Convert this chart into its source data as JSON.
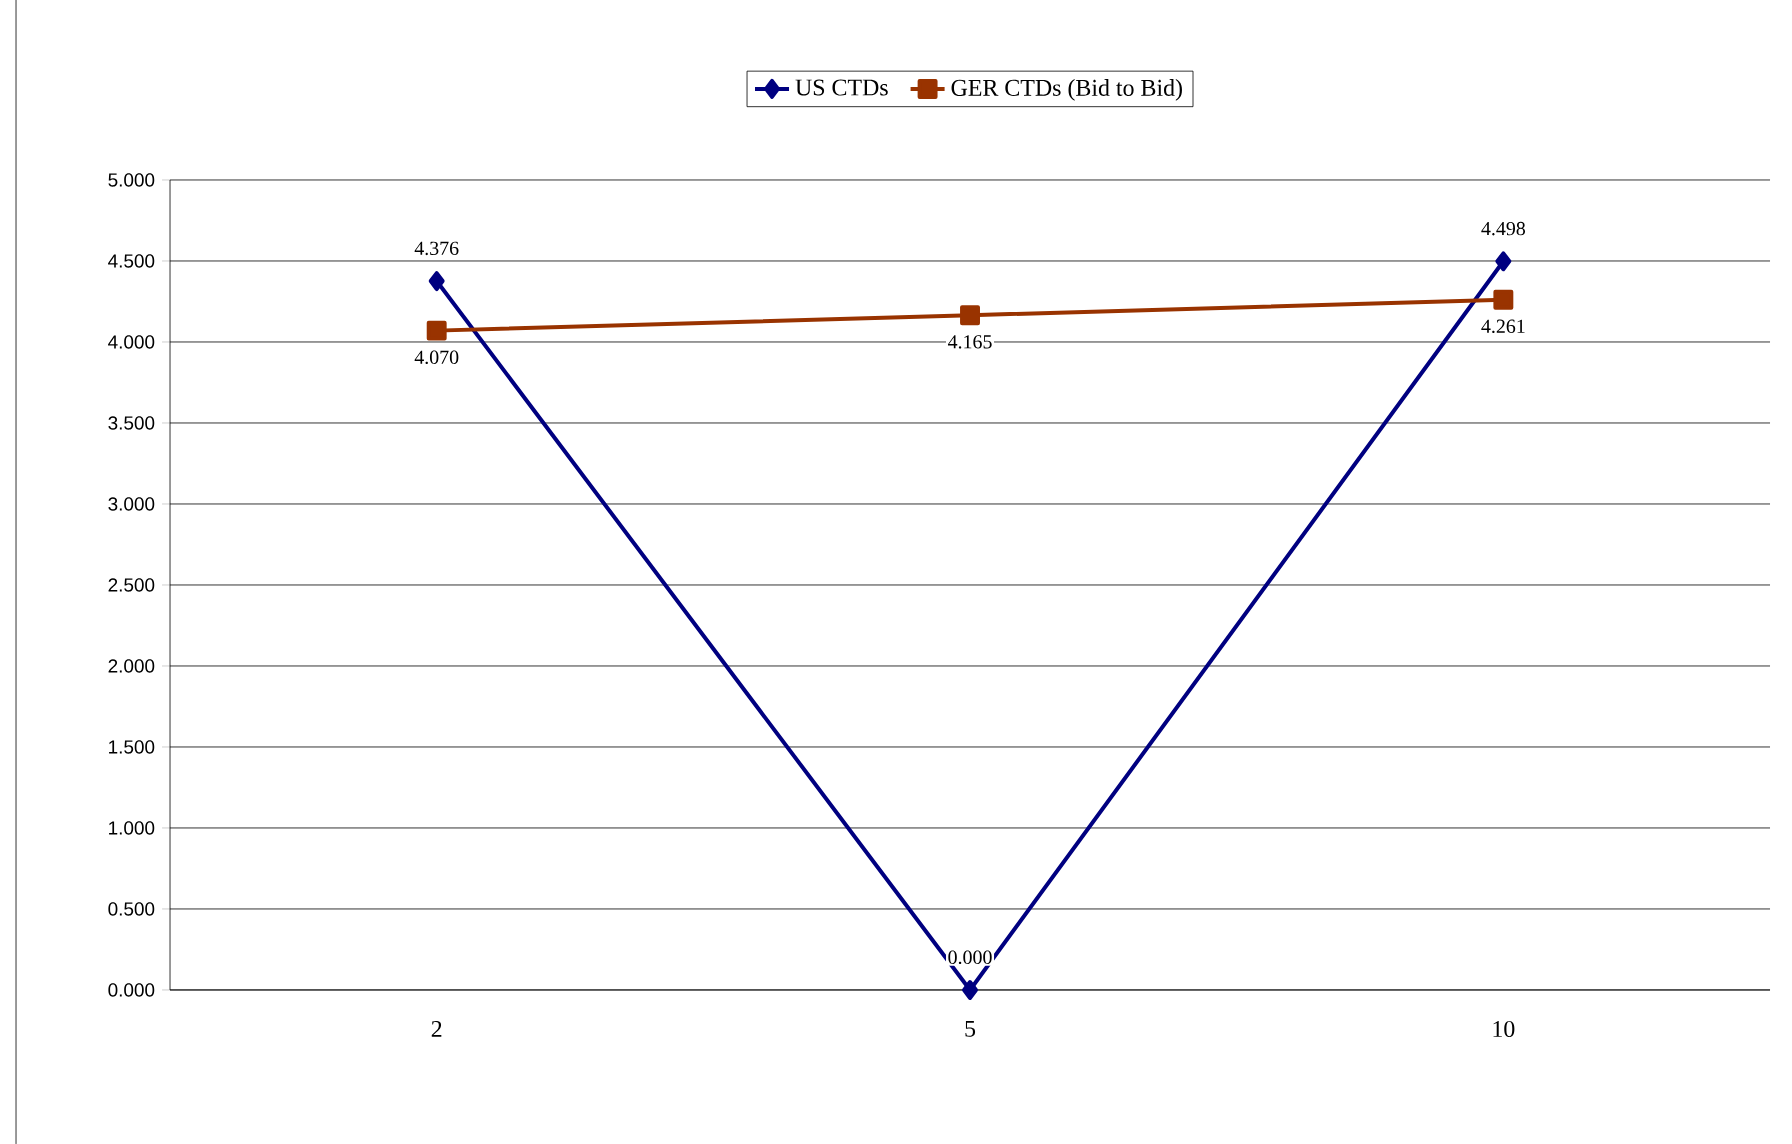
{
  "chart_data": {
    "type": "line",
    "categories": [
      "2",
      "5",
      "10"
    ],
    "series": [
      {
        "name": "US CTDs",
        "color": "#000080",
        "marker": "diamond",
        "values": [
          4.376,
          0.0,
          4.498
        ],
        "value_labels": [
          "4.376",
          "0.000",
          "4.498"
        ]
      },
      {
        "name": "GER CTDs (Bid to Bid)",
        "color": "#993300",
        "marker": "square",
        "values": [
          4.07,
          4.165,
          4.261
        ],
        "value_labels": [
          "4.070",
          "4.165",
          "4.261"
        ]
      }
    ],
    "ylim": [
      0,
      5
    ],
    "yticks": [
      {
        "value": 0,
        "label": "0.000"
      },
      {
        "value": 0.5,
        "label": "0.500"
      },
      {
        "value": 1,
        "label": "1.000"
      },
      {
        "value": 1.5,
        "label": "1.500"
      },
      {
        "value": 2,
        "label": "2.000"
      },
      {
        "value": 2.5,
        "label": "2.500"
      },
      {
        "value": 3,
        "label": "3.000"
      },
      {
        "value": 3.5,
        "label": "3.500"
      },
      {
        "value": 4,
        "label": "4.000"
      },
      {
        "value": 4.5,
        "label": "4.500"
      },
      {
        "value": 5,
        "label": "5.000"
      }
    ],
    "grid": "y",
    "legend": "top"
  }
}
